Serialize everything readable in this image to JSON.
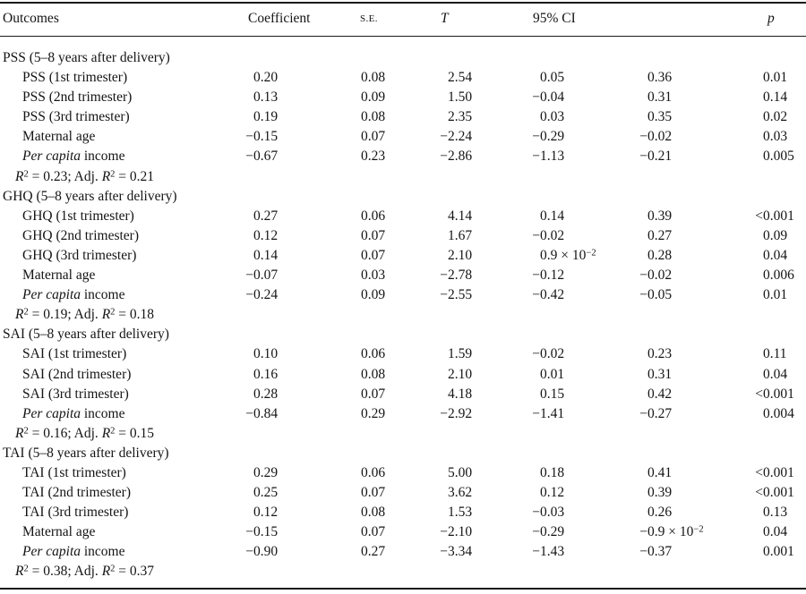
{
  "page": {
    "background_color": "#ffffff",
    "text_color": "#141414"
  },
  "table": {
    "headers": {
      "outcomes": "Outcomes",
      "coefficient": "Coefficient",
      "se": "S.E.",
      "t": "T",
      "ci": "95% CI",
      "p": "p"
    },
    "sections": [
      {
        "title": "PSS (5–8 years after delivery)",
        "rows": [
          {
            "label": "PSS (1st trimester)",
            "coef": "0.20",
            "se": "0.08",
            "t": "2.54",
            "ci_low": "0.05",
            "ci_high": "0.36",
            "p": "0.01"
          },
          {
            "label": "PSS (2nd trimester)",
            "coef": "0.13",
            "se": "0.09",
            "t": "1.50",
            "ci_low": "−0.04",
            "ci_high": "0.31",
            "p": "0.14"
          },
          {
            "label": "PSS (3rd trimester)",
            "coef": "0.19",
            "se": "0.08",
            "t": "2.35",
            "ci_low": "0.03",
            "ci_high": "0.35",
            "p": "0.02"
          },
          {
            "label": "Maternal age",
            "coef": "−0.15",
            "se": "0.07",
            "t": "−2.24",
            "ci_low": "−0.29",
            "ci_high": "−0.02",
            "p": "0.03"
          },
          {
            "label_italic": "Per capita",
            "label_rest": " income",
            "coef": "−0.67",
            "se": "0.23",
            "t": "−2.86",
            "ci_low": "−1.13",
            "ci_high": "−0.21",
            "p": "0.005"
          }
        ],
        "footnote": "R² = 0.23; Adj. R² = 0.21"
      },
      {
        "title": "GHQ (5–8 years after delivery)",
        "rows": [
          {
            "label": "GHQ (1st trimester)",
            "coef": "0.27",
            "se": "0.06",
            "t": "4.14",
            "ci_low": "0.14",
            "ci_high": "0.39",
            "p": "<0.001"
          },
          {
            "label": "GHQ (2nd trimester)",
            "coef": "0.12",
            "se": "0.07",
            "t": "1.67",
            "ci_low": "−0.02",
            "ci_high": "0.27",
            "p": "0.09"
          },
          {
            "label": "GHQ (3rd trimester)",
            "coef": "0.14",
            "se": "0.07",
            "t": "2.10",
            "ci_low": "0.9 × 10⁻²",
            "ci_high": "0.28",
            "p": "0.04"
          },
          {
            "label": "Maternal age",
            "coef": "−0.07",
            "se": "0.03",
            "t": "−2.78",
            "ci_low": "−0.12",
            "ci_high": "−0.02",
            "p": "0.006"
          },
          {
            "label_italic": "Per capita",
            "label_rest": " income",
            "coef": "−0.24",
            "se": "0.09",
            "t": "−2.55",
            "ci_low": "−0.42",
            "ci_high": "−0.05",
            "p": "0.01"
          }
        ],
        "footnote": "R² = 0.19; Adj. R² = 0.18"
      },
      {
        "title": "SAI (5–8 years after delivery)",
        "rows": [
          {
            "label": "SAI (1st trimester)",
            "coef": "0.10",
            "se": "0.06",
            "t": "1.59",
            "ci_low": "−0.02",
            "ci_high": "0.23",
            "p": "0.11"
          },
          {
            "label": "SAI (2nd trimester)",
            "coef": "0.16",
            "se": "0.08",
            "t": "2.10",
            "ci_low": "0.01",
            "ci_high": "0.31",
            "p": "0.04"
          },
          {
            "label": "SAI (3rd trimester)",
            "coef": "0.28",
            "se": "0.07",
            "t": "4.18",
            "ci_low": "0.15",
            "ci_high": "0.42",
            "p": "<0.001"
          },
          {
            "label_italic": "Per capita",
            "label_rest": " income",
            "coef": "−0.84",
            "se": "0.29",
            "t": "−2.92",
            "ci_low": "−1.41",
            "ci_high": "−0.27",
            "p": "0.004"
          }
        ],
        "footnote": "R² = 0.16; Adj. R² = 0.15"
      },
      {
        "title": "TAI (5–8 years after delivery)",
        "rows": [
          {
            "label": "TAI (1st trimester)",
            "coef": "0.29",
            "se": "0.06",
            "t": "5.00",
            "ci_low": "0.18",
            "ci_high": "0.41",
            "p": "<0.001"
          },
          {
            "label": "TAI (2nd trimester)",
            "coef": "0.25",
            "se": "0.07",
            "t": "3.62",
            "ci_low": "0.12",
            "ci_high": "0.39",
            "p": "<0.001"
          },
          {
            "label": "TAI (3rd trimester)",
            "coef": "0.12",
            "se": "0.08",
            "t": "1.53",
            "ci_low": "−0.03",
            "ci_high": "0.26",
            "p": "0.13"
          },
          {
            "label": "Maternal age",
            "coef": "−0.15",
            "se": "0.07",
            "t": "−2.10",
            "ci_low": "−0.29",
            "ci_high": "−0.9 × 10⁻²",
            "p": "0.04"
          },
          {
            "label_italic": "Per capita",
            "label_rest": " income",
            "coef": "−0.90",
            "se": "0.27",
            "t": "−3.34",
            "ci_low": "−1.43",
            "ci_high": "−0.37",
            "p": "0.001"
          }
        ],
        "footnote": "R² = 0.38; Adj. R² = 0.37"
      }
    ]
  }
}
